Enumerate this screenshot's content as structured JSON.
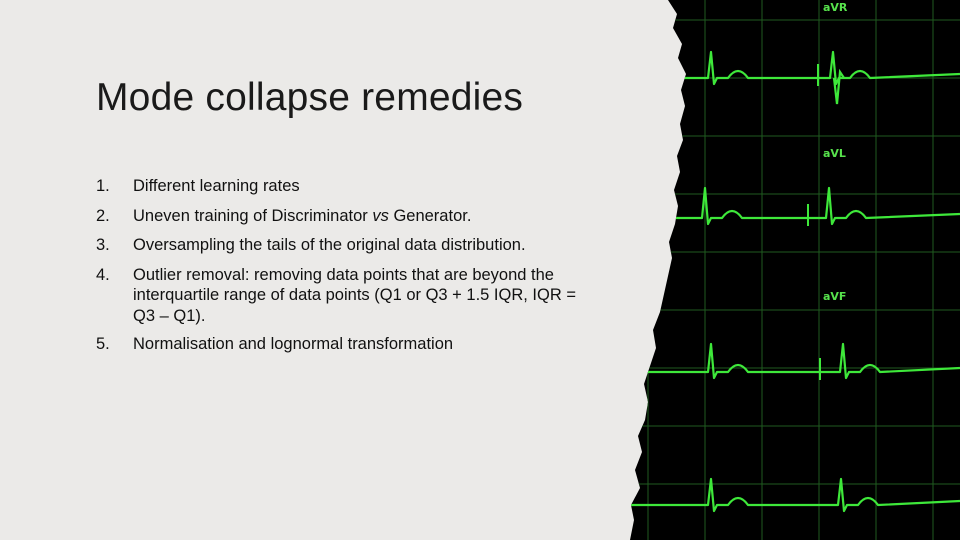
{
  "title": "Mode collapse remedies",
  "items": [
    {
      "num": "1.",
      "parts": [
        "Different learning rates"
      ]
    },
    {
      "num": "2.",
      "parts": [
        "Uneven training of Discriminator ",
        "vs",
        " Generator."
      ]
    },
    {
      "num": "3.",
      "parts": [
        "Oversampling the tails of the original data distribution."
      ]
    },
    {
      "num": "4.",
      "parts": [
        "Outlier removal: removing data points that are beyond the interquartile range of data points (Q1 or Q3 + 1.5 IQR, IQR = Q3 – Q1)."
      ]
    },
    {
      "num": "5.",
      "parts": [
        "Normalisation and lognormal transformation"
      ]
    }
  ],
  "ecg": {
    "leads": [
      "aVR",
      "aVL",
      "aVF"
    ],
    "colors": {
      "trace": "#3ee83a",
      "grid": "#1f5a1f",
      "background": "#000000",
      "slide": "#ebeae8"
    }
  }
}
